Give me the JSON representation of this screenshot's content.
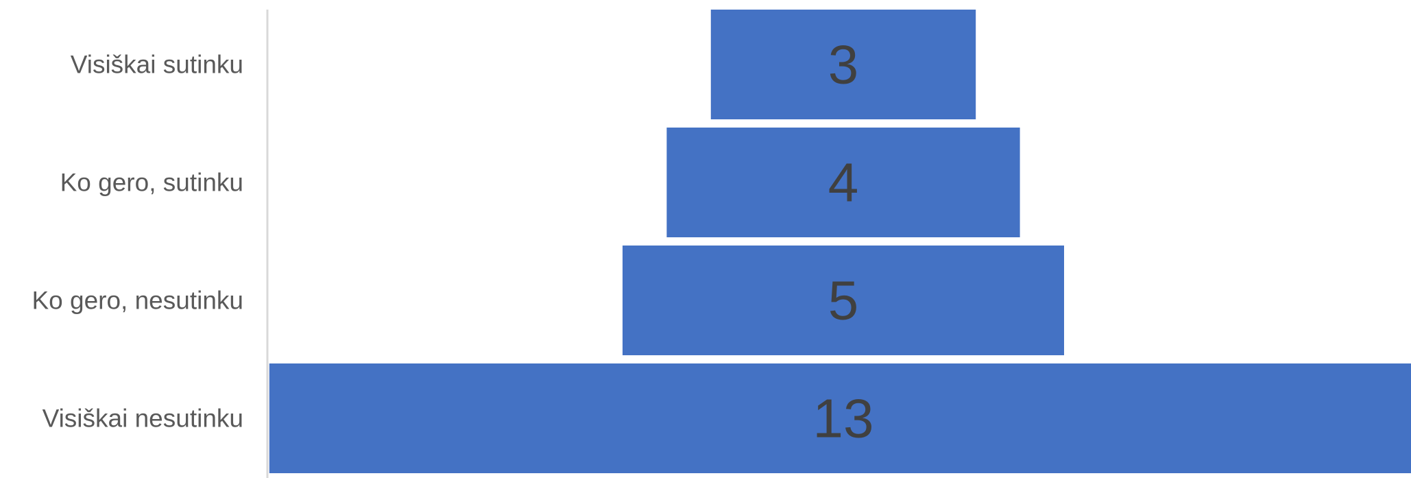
{
  "chart_data": {
    "type": "bar",
    "orientation": "horizontal-funnel",
    "categories": [
      "Visiškai sutinku",
      "Ko gero, sutinku",
      "Ko gero, nesutinku",
      "Visiškai nesutinku"
    ],
    "values": [
      3,
      4,
      5,
      13
    ],
    "data_labels": [
      "3",
      "4",
      "5",
      "13"
    ],
    "bar_color": "#4472C4",
    "title": "",
    "xlabel": "",
    "ylabel": "",
    "grid": false,
    "legend": "none"
  }
}
